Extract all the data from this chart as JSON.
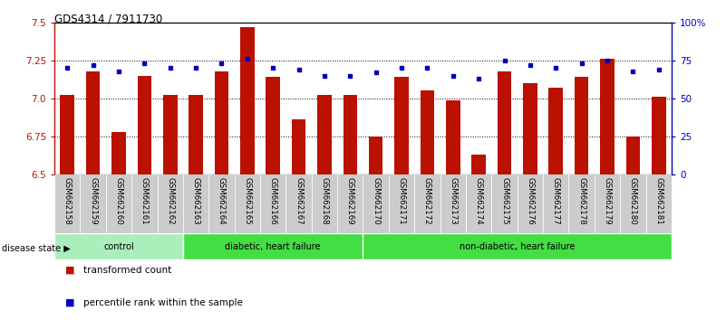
{
  "title": "GDS4314 / 7911730",
  "samples": [
    "GSM662158",
    "GSM662159",
    "GSM662160",
    "GSM662161",
    "GSM662162",
    "GSM662163",
    "GSM662164",
    "GSM662165",
    "GSM662166",
    "GSM662167",
    "GSM662168",
    "GSM662169",
    "GSM662170",
    "GSM662171",
    "GSM662172",
    "GSM662173",
    "GSM662174",
    "GSM662175",
    "GSM662176",
    "GSM662177",
    "GSM662178",
    "GSM662179",
    "GSM662180",
    "GSM662181"
  ],
  "bar_values": [
    7.02,
    7.18,
    6.78,
    7.15,
    7.02,
    7.02,
    7.18,
    7.47,
    7.14,
    6.86,
    7.02,
    7.02,
    6.75,
    7.14,
    7.05,
    6.99,
    6.63,
    7.18,
    7.1,
    7.07,
    7.14,
    7.26,
    6.75,
    7.01
  ],
  "dot_values": [
    70,
    72,
    68,
    73,
    70,
    70,
    73,
    76,
    70,
    69,
    65,
    65,
    67,
    70,
    70,
    65,
    63,
    75,
    72,
    70,
    73,
    75,
    68,
    69
  ],
  "ylim_left": [
    6.5,
    7.5
  ],
  "ylim_right": [
    0,
    100
  ],
  "yticks_left": [
    6.5,
    6.75,
    7.0,
    7.25,
    7.5
  ],
  "yticks_right": [
    0,
    25,
    50,
    75,
    100
  ],
  "ytick_labels_right": [
    "0",
    "25",
    "50",
    "75",
    "100%"
  ],
  "bar_color": "#BB1100",
  "dot_color": "#0000BB",
  "bar_width": 0.55,
  "group_configs": [
    {
      "start": 0,
      "end": 5,
      "color": "#AAEEBB",
      "label": "control"
    },
    {
      "start": 5,
      "end": 12,
      "color": "#44DD44",
      "label": "diabetic, heart failure"
    },
    {
      "start": 12,
      "end": 24,
      "color": "#44DD44",
      "label": "non-diabetic, heart failure"
    }
  ],
  "legend_items": [
    {
      "label": "transformed count",
      "color": "#BB1100"
    },
    {
      "label": "percentile rank within the sample",
      "color": "#0000BB"
    }
  ]
}
